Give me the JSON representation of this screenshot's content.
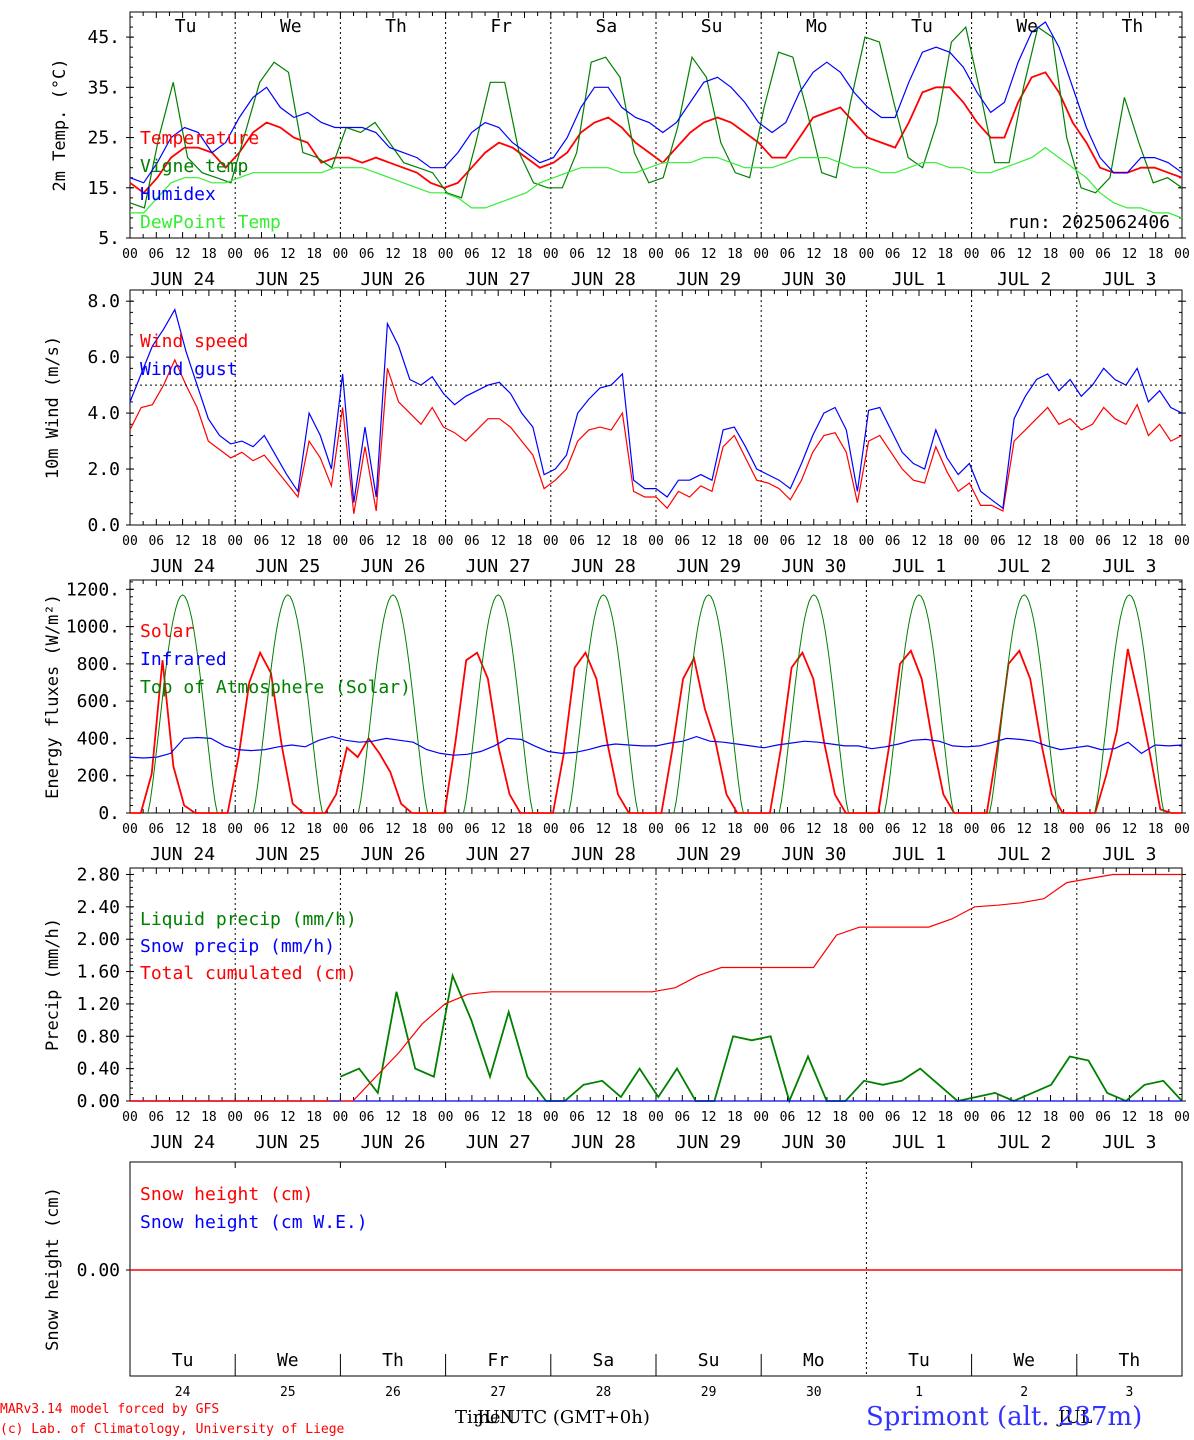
{
  "run_label": "run: 2025062406",
  "footer": {
    "line1": "MARv3.14 model forced by GFS",
    "line2": "(c) Lab. of Climatology, University of Liege",
    "xlabel": "Time UTC (GMT+0h)",
    "jun_overlay": "JUN",
    "jul_overlay": "JUL",
    "station": "Sprimont (alt. 237m)"
  },
  "colors": {
    "red": "#ff0000",
    "green": "#008000",
    "blue": "#0000ff",
    "lightgreen": "#33ee33"
  },
  "days": [
    "Tu",
    "We",
    "Th",
    "Fr",
    "Sa",
    "Su",
    "Mo",
    "Tu",
    "We",
    "Th"
  ],
  "weekend_idx": [
    4,
    5
  ],
  "date_labels": [
    "JUN 24",
    "JUN 25",
    "JUN 26",
    "JUN 27",
    "JUN 28",
    "JUN 29",
    "JUN 30",
    "JUL  1",
    "JUL  2",
    "JUL  3"
  ],
  "day_nums": [
    "24",
    "25",
    "26",
    "27",
    "28",
    "29",
    "30",
    "1",
    "2",
    "3"
  ],
  "hour_ticks": [
    "00",
    "06",
    "12",
    "18"
  ],
  "final_hour": "00",
  "chart_data": [
    {
      "type": "line",
      "ylabel": "2m Temp. (°C)",
      "ylim": [
        5,
        50
      ],
      "yticks": [
        "5.",
        "15.",
        "25.",
        "35.",
        "45."
      ],
      "ytick_values": [
        5,
        15,
        25,
        35,
        45
      ],
      "series": [
        {
          "name": "Temperature",
          "color": "#ff0000",
          "values": [
            16,
            14,
            17,
            21,
            23,
            23,
            22,
            19,
            22,
            26,
            28,
            27,
            25,
            24,
            20,
            21,
            21,
            20,
            21,
            20,
            19,
            18,
            16,
            15,
            16,
            19,
            22,
            24,
            23,
            21,
            19,
            20,
            22,
            26,
            28,
            29,
            27,
            24,
            22,
            20,
            23,
            26,
            28,
            29,
            28,
            26,
            24,
            21,
            21,
            25,
            29,
            30,
            31,
            28,
            25,
            24,
            23,
            28,
            34,
            35,
            35,
            32,
            28,
            25,
            25,
            32,
            37,
            38,
            34,
            28,
            24,
            19,
            18,
            18,
            19,
            19,
            18,
            17
          ]
        },
        {
          "name": "Vigne temp",
          "color": "#008000",
          "values": [
            12,
            11,
            25,
            36,
            21,
            18,
            17,
            16,
            26,
            36,
            40,
            38,
            22,
            21,
            19,
            27,
            26,
            28,
            24,
            20,
            19,
            18,
            14,
            13,
            24,
            36,
            36,
            22,
            16,
            15,
            15,
            22,
            40,
            41,
            37,
            22,
            16,
            17,
            27,
            41,
            37,
            24,
            18,
            17,
            31,
            42,
            41,
            30,
            18,
            17,
            32,
            45,
            44,
            32,
            21,
            19,
            28,
            44,
            47,
            34,
            20,
            20,
            35,
            47,
            45,
            25,
            15,
            14,
            17,
            33,
            24,
            16,
            17,
            15
          ]
        },
        {
          "name": "Humidex",
          "color": "#0000ff",
          "values": [
            17,
            16,
            20,
            25,
            27,
            26,
            22,
            24,
            29,
            33,
            35,
            31,
            29,
            30,
            28,
            27,
            27,
            27,
            26,
            23,
            22,
            21,
            19,
            19,
            22,
            26,
            28,
            27,
            24,
            22,
            20,
            21,
            25,
            31,
            35,
            35,
            31,
            29,
            28,
            26,
            28,
            32,
            36,
            37,
            35,
            32,
            28,
            26,
            28,
            34,
            38,
            40,
            38,
            34,
            31,
            29,
            29,
            36,
            42,
            43,
            42,
            39,
            34,
            30,
            32,
            40,
            46,
            48,
            43,
            35,
            27,
            21,
            18,
            18,
            21,
            21,
            20,
            18
          ]
        },
        {
          "name": "DewPoint Temp",
          "color": "#33ee33",
          "values": [
            10,
            10,
            13,
            16,
            17,
            17,
            16,
            16,
            17,
            18,
            18,
            18,
            18,
            18,
            18,
            19,
            19,
            19,
            18,
            17,
            16,
            15,
            14,
            14,
            13,
            11,
            11,
            12,
            13,
            14,
            16,
            17,
            18,
            19,
            19,
            19,
            18,
            18,
            19,
            20,
            20,
            20,
            21,
            21,
            20,
            19,
            19,
            19,
            20,
            21,
            21,
            21,
            20,
            19,
            19,
            18,
            18,
            19,
            20,
            20,
            19,
            19,
            18,
            18,
            19,
            20,
            21,
            23,
            21,
            19,
            17,
            14,
            12,
            11,
            11,
            10,
            10,
            9
          ]
        }
      ],
      "x_hours_step": 3
    },
    {
      "type": "line",
      "ylabel": "10m Wind (m/s)",
      "ylim": [
        0,
        8.4
      ],
      "yticks": [
        "0.0",
        "2.0",
        "4.0",
        "6.0",
        "8.0"
      ],
      "ytick_values": [
        0,
        2,
        4,
        6,
        8
      ],
      "ref_line": 5,
      "series": [
        {
          "name": "Wind speed",
          "color": "#ff0000",
          "values": [
            3.4,
            4.2,
            4.3,
            5.0,
            5.9,
            5.0,
            4.2,
            3.0,
            2.7,
            2.4,
            2.6,
            2.3,
            2.5,
            2.0,
            1.5,
            1.0,
            3.0,
            2.4,
            1.4,
            4.2,
            0.4,
            2.8,
            0.5,
            5.6,
            4.4,
            4.0,
            3.6,
            4.2,
            3.5,
            3.3,
            3.0,
            3.4,
            3.8,
            3.8,
            3.5,
            3.0,
            2.5,
            1.3,
            1.6,
            2.0,
            3.0,
            3.4,
            3.5,
            3.4,
            4.0,
            1.2,
            1.0,
            1.0,
            0.6,
            1.2,
            1.0,
            1.4,
            1.2,
            2.8,
            3.2,
            2.4,
            1.6,
            1.5,
            1.3,
            0.9,
            1.6,
            2.6,
            3.2,
            3.3,
            2.6,
            0.8,
            3.0,
            3.2,
            2.6,
            2.0,
            1.6,
            1.5,
            2.8,
            1.9,
            1.2,
            1.5,
            0.7,
            0.7,
            0.5,
            3.0,
            3.4,
            3.8,
            4.2,
            3.6,
            3.8,
            3.4,
            3.6,
            4.2,
            3.8,
            3.6,
            4.3,
            3.2,
            3.6,
            3.0,
            3.2
          ]
        },
        {
          "name": "Wind gust",
          "color": "#0000ff",
          "values": [
            4.4,
            5.4,
            6.4,
            7.0,
            7.7,
            6.2,
            5.0,
            3.8,
            3.2,
            2.9,
            3.0,
            2.8,
            3.2,
            2.5,
            1.8,
            1.2,
            4.0,
            3.2,
            2.0,
            5.4,
            0.8,
            3.5,
            1.0,
            7.2,
            6.4,
            5.2,
            5.0,
            5.3,
            4.7,
            4.3,
            4.6,
            4.8,
            5.0,
            5.1,
            4.7,
            4.0,
            3.5,
            1.8,
            2.0,
            2.5,
            4.0,
            4.5,
            4.9,
            5.0,
            5.4,
            1.6,
            1.3,
            1.3,
            1.0,
            1.6,
            1.6,
            1.8,
            1.6,
            3.4,
            3.5,
            2.8,
            2.0,
            1.8,
            1.6,
            1.3,
            2.2,
            3.2,
            4.0,
            4.2,
            3.4,
            1.2,
            4.1,
            4.2,
            3.4,
            2.6,
            2.2,
            2.0,
            3.4,
            2.4,
            1.8,
            2.2,
            1.2,
            0.9,
            0.6,
            3.8,
            4.6,
            5.2,
            5.4,
            4.8,
            5.2,
            4.6,
            5.0,
            5.6,
            5.2,
            5.0,
            5.6,
            4.4,
            4.8,
            4.2,
            4.0
          ]
        }
      ]
    },
    {
      "type": "line",
      "ylabel": "Energy fluxes (W/m²)",
      "ylim": [
        0,
        1250
      ],
      "yticks": [
        "0.",
        "200.",
        "400.",
        "600.",
        "800.",
        "1000.",
        "1200."
      ],
      "ytick_values": [
        0,
        200,
        400,
        600,
        800,
        1000,
        1200
      ],
      "series": [
        {
          "name": "Solar",
          "color": "#ff0000",
          "values": [
            0,
            0,
            210,
            820,
            250,
            40,
            0,
            0,
            0,
            0,
            300,
            700,
            860,
            750,
            360,
            50,
            0,
            0,
            0,
            100,
            350,
            300,
            400,
            320,
            220,
            50,
            0,
            0,
            0,
            0,
            380,
            820,
            860,
            720,
            350,
            100,
            0,
            0,
            0,
            0,
            320,
            780,
            860,
            720,
            380,
            100,
            0,
            0,
            0,
            0,
            340,
            720,
            830,
            560,
            380,
            100,
            0,
            0,
            0,
            0,
            340,
            780,
            860,
            720,
            380,
            100,
            0,
            0,
            0,
            0,
            360,
            800,
            870,
            720,
            380,
            100,
            0,
            0,
            0,
            0,
            360,
            800,
            870,
            720,
            380,
            100,
            0,
            0,
            0,
            0,
            200,
            440,
            880,
            620,
            330,
            20,
            0,
            0
          ]
        },
        {
          "name": "Infrared",
          "color": "#0000ff",
          "values": [
            300,
            295,
            300,
            320,
            400,
            405,
            400,
            360,
            340,
            335,
            340,
            355,
            365,
            355,
            390,
            410,
            390,
            380,
            385,
            400,
            390,
            380,
            340,
            320,
            310,
            315,
            330,
            360,
            400,
            395,
            360,
            330,
            320,
            325,
            340,
            360,
            370,
            365,
            360,
            360,
            375,
            385,
            410,
            385,
            380,
            370,
            360,
            350,
            365,
            375,
            385,
            380,
            370,
            360,
            360,
            345,
            355,
            370,
            390,
            395,
            385,
            360,
            355,
            360,
            380,
            400,
            395,
            385,
            360,
            340,
            350,
            360,
            340,
            345,
            380,
            320,
            365,
            360,
            365
          ]
        },
        {
          "name": "Top of Atmosphere (Solar)",
          "color": "#008000",
          "values": [
            0,
            1170,
            0,
            1170,
            0,
            1170,
            0,
            1170,
            0,
            1170,
            0,
            1170,
            0,
            1170,
            0,
            1170,
            0,
            1170,
            0,
            1170,
            0
          ]
        }
      ]
    },
    {
      "type": "line",
      "ylabel": "Precip (mm/h)",
      "ylim": [
        0,
        2.88
      ],
      "yticks": [
        "0.00",
        "0.40",
        "0.80",
        "1.20",
        "1.60",
        "2.00",
        "2.40",
        "2.80"
      ],
      "ytick_values": [
        0,
        0.4,
        0.8,
        1.2,
        1.6,
        2.0,
        2.4,
        2.8
      ],
      "series": [
        {
          "name": "Liquid precip (mm/h)",
          "color": "#008000",
          "values": [
            0.3,
            0.4,
            0.1,
            1.35,
            0.4,
            0.3,
            1.55,
            1.0,
            0.3,
            1.1,
            0.3,
            0.0,
            0.0,
            0.2,
            0.25,
            0.05,
            0.4,
            0.05,
            0.4,
            0.0,
            0.0,
            0.8,
            0.75,
            0.8,
            0.0,
            0.55,
            0.0,
            0.0,
            0.25,
            0.2,
            0.25,
            0.4,
            0.2,
            0.0,
            0.05,
            0.1,
            0.0,
            0.1,
            0.2,
            0.55,
            0.5,
            0.1,
            0.0,
            0.2,
            0.25,
            0.0
          ]
        },
        {
          "name": "Snow precip (mm/h)",
          "color": "#0000ff",
          "values": [
            0,
            0
          ]
        },
        {
          "name": "Total cumulated (cm)",
          "color": "#ff0000",
          "values": [
            0.0,
            0.0,
            0.3,
            0.6,
            0.95,
            1.2,
            1.32,
            1.35,
            1.35,
            1.35,
            1.35,
            1.35,
            1.35,
            1.35,
            1.35,
            1.4,
            1.55,
            1.65,
            1.65,
            1.65,
            1.65,
            1.65,
            2.05,
            2.15,
            2.15,
            2.15,
            2.15,
            2.25,
            2.4,
            2.42,
            2.45,
            2.5,
            2.7,
            2.75,
            2.8,
            2.8,
            2.8,
            2.8
          ]
        }
      ]
    },
    {
      "type": "line",
      "ylabel": "Snow height (cm)",
      "yticks": [
        "0.00"
      ],
      "ytick_values": [
        0
      ],
      "series": [
        {
          "name": "Snow height (cm)",
          "color": "#ff0000",
          "values": [
            0,
            0
          ]
        },
        {
          "name": "Snow height (cm W.E.)",
          "color": "#0000ff",
          "values": [
            0,
            0
          ]
        }
      ]
    }
  ]
}
